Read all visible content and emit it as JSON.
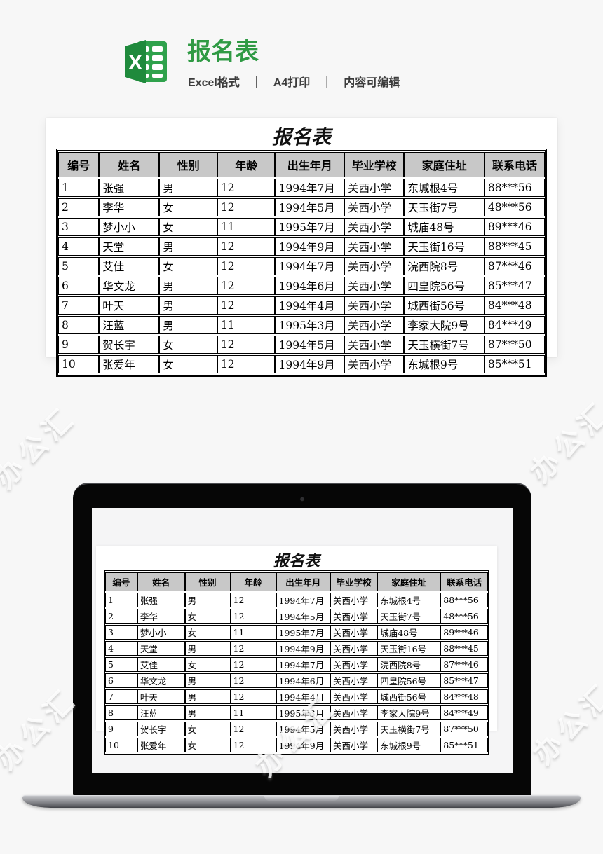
{
  "watermark": {
    "text": "办公汇"
  },
  "header": {
    "title": "报名表",
    "subtitle": "Excel格式　｜　A4打印　｜　内容可编辑",
    "icon": "excel-icon"
  },
  "sheet": {
    "title": "报名表",
    "columns": [
      "编号",
      "姓名",
      "性别",
      "年龄",
      "出生年月",
      "毕业学校",
      "家庭住址",
      "联系电话"
    ],
    "rows": [
      [
        "1",
        "张强",
        "男",
        "12",
        "1994年7月",
        "关西小学",
        "东城根4号",
        "88***56"
      ],
      [
        "2",
        "李华",
        "女",
        "12",
        "1994年5月",
        "关西小学",
        "天玉街7号",
        "48***56"
      ],
      [
        "3",
        "梦小小",
        "女",
        "11",
        "1995年7月",
        "关西小学",
        "城庙48号",
        "89***46"
      ],
      [
        "4",
        "天堂",
        "男",
        "12",
        "1994年9月",
        "关西小学",
        "天玉街16号",
        "88***45"
      ],
      [
        "5",
        "艾佳",
        "女",
        "12",
        "1994年7月",
        "关西小学",
        "浣西院8号",
        "87***46"
      ],
      [
        "6",
        "华文龙",
        "男",
        "12",
        "1994年6月",
        "关西小学",
        "四皇院56号",
        "85***47"
      ],
      [
        "7",
        "叶天",
        "男",
        "12",
        "1994年4月",
        "关西小学",
        "城西街56号",
        "84***48"
      ],
      [
        "8",
        "汪蓝",
        "男",
        "11",
        "1995年3月",
        "关西小学",
        "李家大院9号",
        "84***49"
      ],
      [
        "9",
        "贺长宇",
        "女",
        "12",
        "1994年5月",
        "关西小学",
        "天玉横街7号",
        "87***50"
      ],
      [
        "10",
        "张爱年",
        "女",
        "12",
        "1994年9月",
        "关西小学",
        "东城根9号",
        "85***51"
      ]
    ]
  },
  "colors": {
    "title_green": "#2f9a44",
    "icon_green_front": "#1f8a3c",
    "icon_green_sheet": "#2fa24c",
    "table_header_bg": "#c8c8c8",
    "page_bg": "#f7f7f7"
  }
}
